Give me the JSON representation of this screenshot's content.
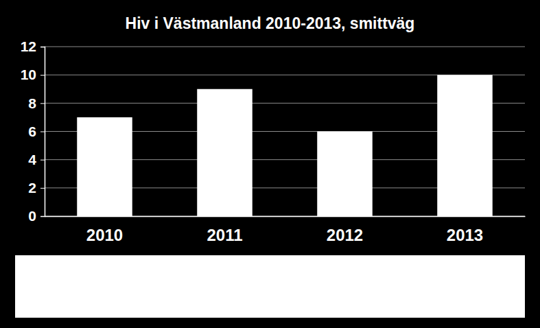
{
  "chart_data": {
    "type": "bar",
    "title": "Hiv i Västmanland 2010-2013, smittväg",
    "categories": [
      "2010",
      "2011",
      "2012",
      "2013"
    ],
    "values": [
      7,
      9,
      6,
      10
    ],
    "color": "#ffffff",
    "ylim": [
      0,
      12
    ],
    "yticks": [
      0,
      2,
      4,
      6,
      8,
      10,
      12
    ],
    "grid": true
  }
}
